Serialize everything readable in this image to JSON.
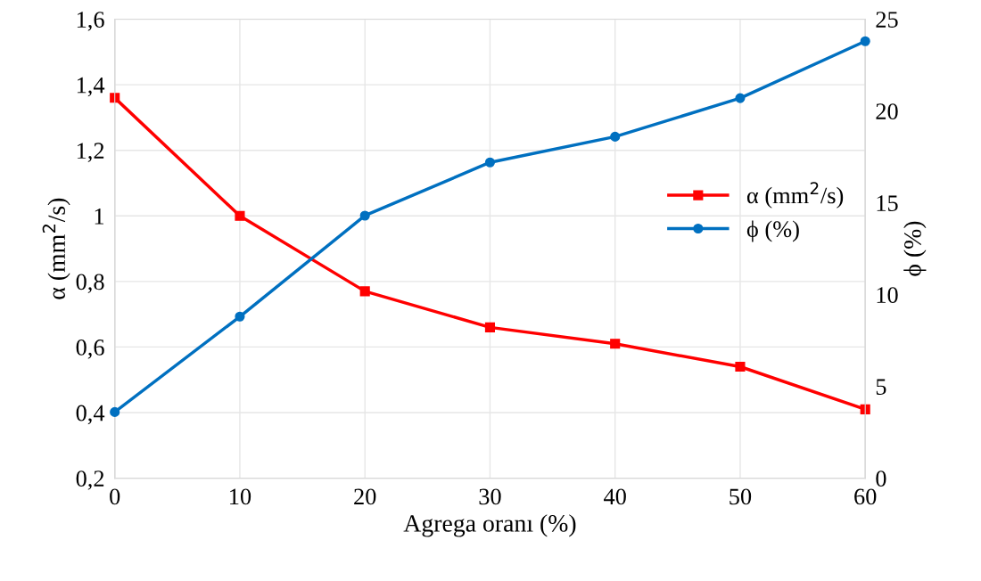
{
  "chart_data": {
    "type": "line",
    "xlabel": "Agrega oranı (%)",
    "ylabel": "α (mm$^{2}$/s)",
    "y2label": "ϕ (%)",
    "x": [
      0,
      10,
      20,
      30,
      40,
      50,
      60
    ],
    "xlim": [
      0,
      60
    ],
    "xticks": [
      0,
      10,
      20,
      30,
      40,
      50,
      60
    ],
    "ylim": [
      0.2,
      1.6
    ],
    "yticks": [
      {
        "value": 0.2,
        "label": "0,2"
      },
      {
        "value": 0.4,
        "label": "0,4"
      },
      {
        "value": 0.6,
        "label": "0,6"
      },
      {
        "value": 0.8,
        "label": "0,8"
      },
      1,
      {
        "value": 1.2,
        "label": "1,2"
      },
      {
        "value": 1.4,
        "label": "1,4"
      },
      {
        "value": 1.6,
        "label": "1,6"
      }
    ],
    "y2lim": [
      0,
      25
    ],
    "y2ticks": [
      0,
      5,
      10,
      15,
      20,
      25
    ],
    "grid": true,
    "legend": "right",
    "series": [
      {
        "name": "α (mm$^{2}$/s)",
        "color": "#ff0000",
        "marker": "square",
        "values": [
          1.36,
          1.0,
          0.77,
          0.66,
          0.61,
          0.54,
          0.41
        ]
      },
      {
        "name": "ϕ (%)",
        "color": "#0070c0",
        "marker": "circle",
        "axis": "y2",
        "values": [
          3.6,
          8.8,
          14.3,
          17.2,
          18.6,
          20.7,
          23.8
        ]
      }
    ]
  }
}
